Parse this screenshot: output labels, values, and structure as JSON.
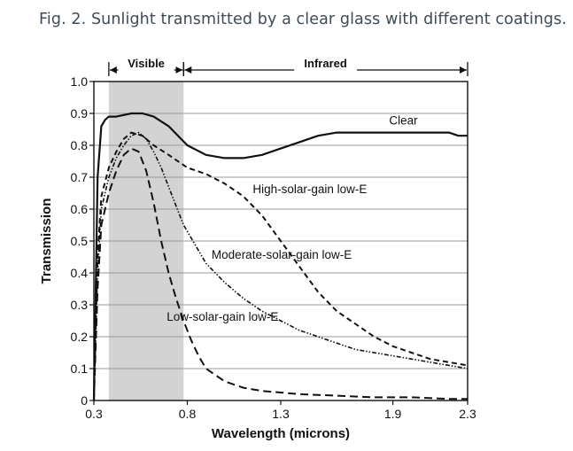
{
  "caption": "Fig. 2. Sunlight transmitted by a clear glass with different coatings.",
  "chart_data": {
    "type": "line",
    "xlabel": "Wavelength (microns)",
    "ylabel": "Transmission",
    "xlim": [
      0.3,
      2.3
    ],
    "ylim": [
      0,
      1.0
    ],
    "xticks": [
      "0.3",
      "0.8",
      "1.3",
      "1.9",
      "2.3"
    ],
    "xtick_values": [
      0.3,
      0.8,
      1.3,
      1.9,
      2.3
    ],
    "yticks": [
      "0",
      "0.1",
      "0.2",
      "0.3",
      "0.4",
      "0.5",
      "0.6",
      "0.7",
      "0.8",
      "0.9",
      "1.0"
    ],
    "ytick_values": [
      0,
      0.1,
      0.2,
      0.3,
      0.4,
      0.5,
      0.6,
      0.7,
      0.8,
      0.9,
      1.0
    ],
    "grid": "horizontal",
    "regions": [
      {
        "label": "Visible",
        "x": [
          0.38,
          0.78
        ],
        "shaded": true
      },
      {
        "label": "Infrared",
        "x": [
          0.78,
          2.3
        ],
        "shaded": false
      }
    ],
    "series": [
      {
        "name": "Clear",
        "style": "solid",
        "x": [
          0.3,
          0.32,
          0.34,
          0.36,
          0.38,
          0.42,
          0.5,
          0.56,
          0.62,
          0.7,
          0.8,
          0.9,
          1.0,
          1.1,
          1.2,
          1.3,
          1.4,
          1.5,
          1.6,
          1.7,
          2.0,
          2.1,
          2.2,
          2.25,
          2.3
        ],
        "y": [
          0.0,
          0.7,
          0.86,
          0.88,
          0.89,
          0.89,
          0.9,
          0.9,
          0.89,
          0.86,
          0.8,
          0.77,
          0.76,
          0.76,
          0.77,
          0.79,
          0.81,
          0.83,
          0.84,
          0.84,
          0.84,
          0.84,
          0.84,
          0.83,
          0.83
        ]
      },
      {
        "name": "High-solar-gain low-E",
        "style": "short-dash",
        "x": [
          0.3,
          0.32,
          0.34,
          0.38,
          0.42,
          0.46,
          0.5,
          0.56,
          0.62,
          0.7,
          0.8,
          0.9,
          1.0,
          1.1,
          1.2,
          1.3,
          1.4,
          1.5,
          1.6,
          1.7,
          1.8,
          1.9,
          2.0,
          2.1,
          2.2,
          2.3
        ],
        "y": [
          0.0,
          0.45,
          0.64,
          0.73,
          0.78,
          0.82,
          0.84,
          0.83,
          0.8,
          0.77,
          0.73,
          0.71,
          0.68,
          0.64,
          0.58,
          0.5,
          0.42,
          0.34,
          0.28,
          0.24,
          0.2,
          0.17,
          0.15,
          0.13,
          0.12,
          0.11
        ]
      },
      {
        "name": "Moderate-solar-gain low-E",
        "style": "dash-dot",
        "x": [
          0.3,
          0.32,
          0.34,
          0.38,
          0.42,
          0.46,
          0.5,
          0.54,
          0.58,
          0.62,
          0.66,
          0.7,
          0.74,
          0.78,
          0.85,
          0.9,
          1.0,
          1.1,
          1.2,
          1.3,
          1.4,
          1.5,
          1.6,
          1.7,
          1.8,
          1.9,
          2.0,
          2.1,
          2.2,
          2.3
        ],
        "y": [
          0.0,
          0.4,
          0.6,
          0.7,
          0.76,
          0.8,
          0.83,
          0.84,
          0.82,
          0.78,
          0.73,
          0.67,
          0.61,
          0.55,
          0.48,
          0.43,
          0.37,
          0.32,
          0.28,
          0.25,
          0.22,
          0.2,
          0.18,
          0.16,
          0.15,
          0.14,
          0.13,
          0.12,
          0.11,
          0.1
        ]
      },
      {
        "name": "Low-solar-gain low-E",
        "style": "long-dash",
        "x": [
          0.3,
          0.32,
          0.34,
          0.38,
          0.42,
          0.46,
          0.5,
          0.54,
          0.58,
          0.62,
          0.66,
          0.7,
          0.74,
          0.78,
          0.82,
          0.86,
          0.9,
          1.0,
          1.1,
          1.2,
          1.3,
          1.4,
          1.6,
          1.8,
          2.0,
          2.2,
          2.3
        ],
        "y": [
          0.0,
          0.35,
          0.55,
          0.65,
          0.72,
          0.77,
          0.79,
          0.78,
          0.72,
          0.62,
          0.5,
          0.4,
          0.32,
          0.25,
          0.19,
          0.14,
          0.1,
          0.06,
          0.04,
          0.03,
          0.025,
          0.02,
          0.015,
          0.01,
          0.01,
          0.005,
          0.005
        ]
      }
    ],
    "annotations": [
      {
        "text": "Clear",
        "x": 1.88,
        "y": 0.865
      },
      {
        "text": "High-solar-gain low-E",
        "x": 1.15,
        "y": 0.65
      },
      {
        "text": "Moderate-solar-gain low-E",
        "x": 0.93,
        "y": 0.445
      },
      {
        "text": "Low-solar-gain low-E",
        "x": 0.69,
        "y": 0.25
      }
    ]
  }
}
